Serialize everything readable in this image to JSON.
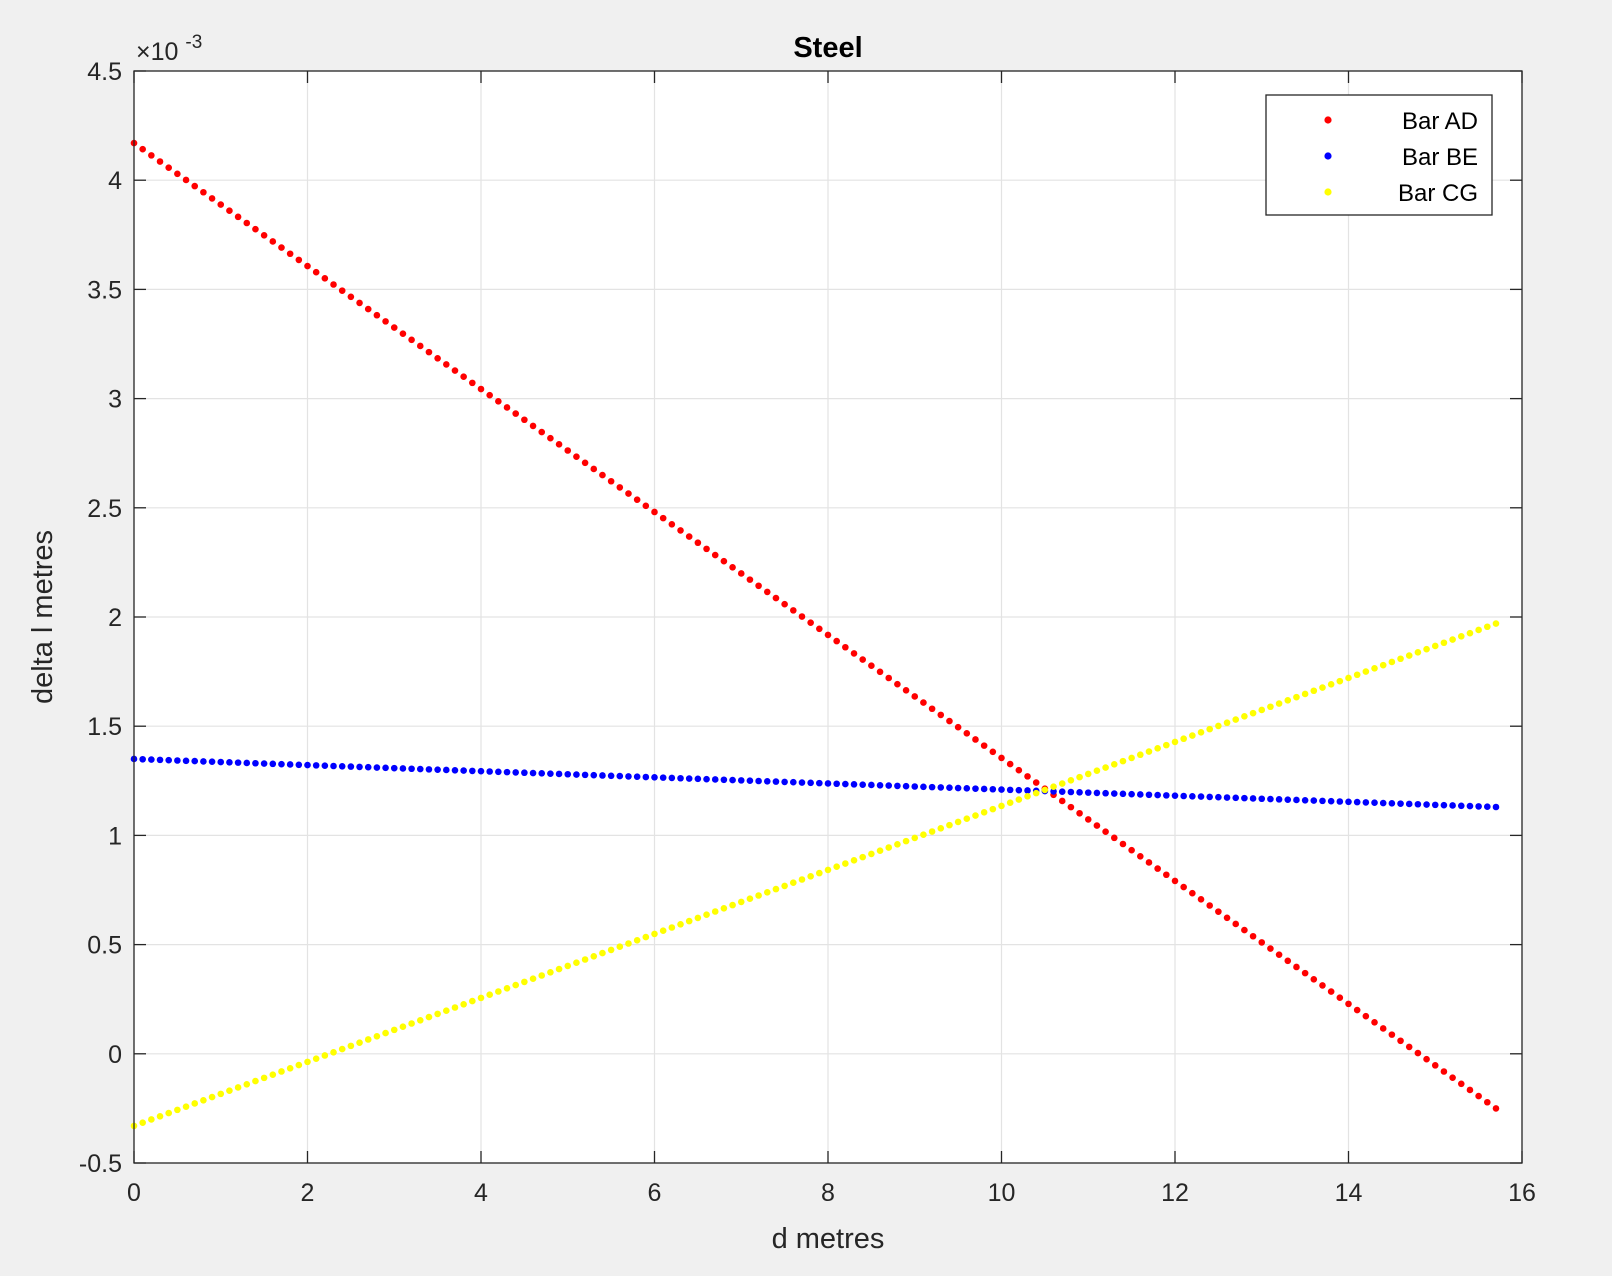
{
  "chart_data": {
    "type": "scatter",
    "title": "Steel",
    "xlabel": "d metres",
    "ylabel": "delta l metres",
    "xlim": [
      0,
      16
    ],
    "ylim": [
      -0.5,
      4.5
    ],
    "y_multiplier_base": "×10",
    "y_multiplier_exponent": "-3",
    "xticks": [
      "0",
      "2",
      "4",
      "6",
      "8",
      "10",
      "12",
      "14",
      "16"
    ],
    "yticks": [
      "-0.5",
      "0",
      "0.5",
      "1",
      "1.5",
      "2",
      "2.5",
      "3",
      "3.5",
      "4",
      "4.5"
    ],
    "grid": true,
    "legend_location": "top-right",
    "background": "#ffffff",
    "series": [
      {
        "name": "Bar AD",
        "color": "#ff0000",
        "marker": "point",
        "x_start": 0,
        "x_end": 15.7,
        "y_start": 4.17,
        "y_end": -0.25,
        "points": 158
      },
      {
        "name": "Bar BE",
        "color": "#0000ff",
        "marker": "point",
        "x_start": 0,
        "x_end": 15.7,
        "y_start": 1.35,
        "y_end": 1.13,
        "points": 158
      },
      {
        "name": "Bar CG",
        "color": "#ffff00",
        "marker": "point",
        "x_start": 0,
        "x_end": 15.7,
        "y_start": -0.33,
        "y_end": 1.97,
        "points": 158
      }
    ]
  }
}
